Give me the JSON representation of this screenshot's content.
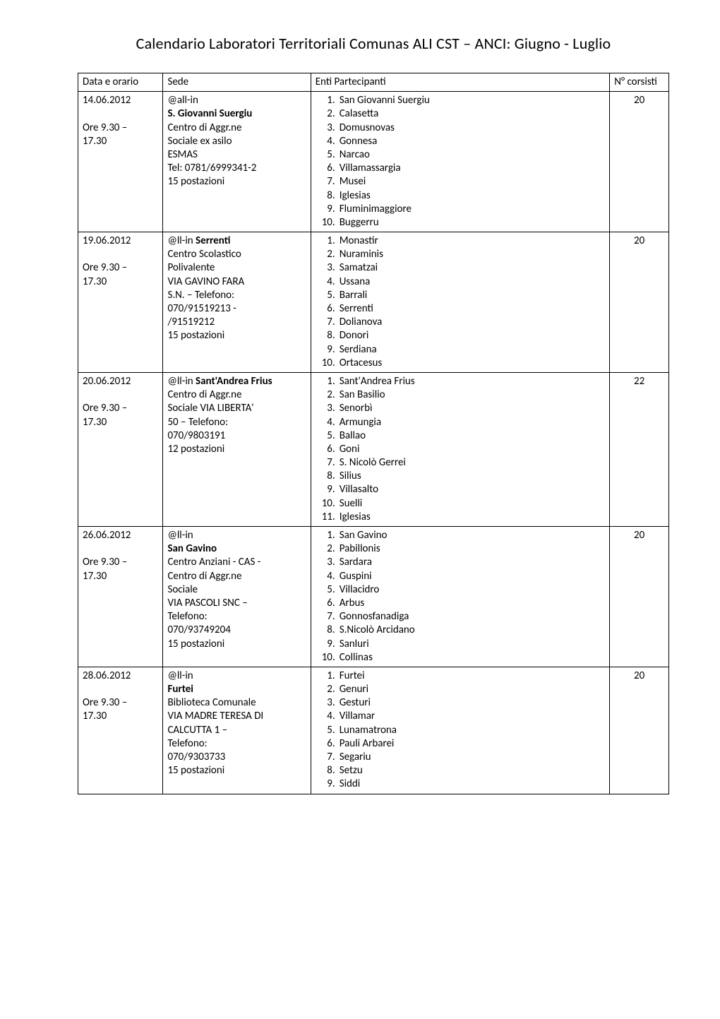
{
  "title": "Calendario Laboratori Territoriali Comunas ALI CST – ANCI: Giugno - Luglio",
  "columns": {
    "data": "Data e orario",
    "sede": "Sede",
    "enti": "Enti Partecipanti",
    "n": "N° corsisti"
  },
  "colWidths": {
    "data": 118,
    "sede": 205,
    "enti": 415,
    "n": 82
  },
  "fontSizePx": 15,
  "rows": [
    {
      "data": [
        "14.06.2012",
        "",
        "Ore 9.30 –",
        "17.30"
      ],
      "sede": [
        {
          "t": "@all-in"
        },
        {
          "t": "S. Giovanni Suergiu",
          "bold": true
        },
        {
          "t": "Centro di Aggr.ne"
        },
        {
          "t": "Sociale ex asilo"
        },
        {
          "t": "ESMAS"
        },
        {
          "t": "Tel: 0781/6999341-2"
        },
        {
          "t": "15          postazioni"
        }
      ],
      "enti": [
        "San Giovanni Suergiu",
        "Calasetta",
        "Domusnovas",
        "Gonnesa",
        "Narcao",
        "Villamassargia",
        "Musei",
        "Iglesias",
        "Fluminimaggiore",
        "Buggerru"
      ],
      "n": "20"
    },
    {
      "data": [
        "19.06.2012",
        "",
        "Ore 9.30 –",
        "17.30"
      ],
      "sede": [
        {
          "t": "@ll-in "
        },
        {
          "t": "Serrenti",
          "bold": true,
          "inline": true
        },
        {
          "t": "Centro Scolastico"
        },
        {
          "t": "Polivalente"
        },
        {
          "t": "VIA GAVINO FARA"
        },
        {
          "t": "S.N. – Telefono:"
        },
        {
          "t": "070/91519213 -"
        },
        {
          "t": "/91519212"
        },
        {
          "t": "15 postazioni"
        }
      ],
      "enti": [
        "Monastir",
        "Nuraminis",
        "Samatzai",
        "Ussana",
        "Barrali",
        "Serrenti",
        "Dolianova",
        "Donori",
        "Serdiana",
        "Ortacesus"
      ],
      "n": "20"
    },
    {
      "data": [
        "20.06.2012",
        "",
        "Ore 9.30 –",
        "17.30"
      ],
      "sede": [
        {
          "t": "@ll-in "
        },
        {
          "t": "Sant'Andrea Frius",
          "bold": true,
          "inline": true
        },
        {
          "t": "Centro di Aggr.ne"
        },
        {
          "t": "Sociale VIA LIBERTA'"
        },
        {
          "t": "50 – Telefono:"
        },
        {
          "t": "070/9803191"
        },
        {
          "t": "12 postazioni"
        }
      ],
      "enti": [
        "Sant'Andrea Frius",
        "San Basilio",
        "Senorbì",
        "Armungia",
        "Ballao",
        "Goni",
        "S. Nicolò Gerrei",
        "Silius",
        "Villasalto",
        "Suelli",
        "Iglesias"
      ],
      "n": "22"
    },
    {
      "data": [
        "26.06.2012",
        "",
        "Ore 9.30 –",
        "17.30"
      ],
      "sede": [
        {
          "t": "@ll-in"
        },
        {
          "t": "San Gavino",
          "bold": true
        },
        {
          "t": "Centro Anziani - CAS -"
        },
        {
          "t": "Centro di Aggr.ne"
        },
        {
          "t": "Sociale"
        },
        {
          "t": "VIA PASCOLI SNC –"
        },
        {
          "t": "Telefono:"
        },
        {
          "t": "070/93749204"
        },
        {
          "t": "15 postazioni"
        }
      ],
      "enti": [
        "San Gavino",
        "Pabillonis",
        "Sardara",
        "Guspini",
        "Villacidro",
        "Arbus",
        "Gonnosfanadiga",
        "S.Nicolò Arcidano",
        "Sanluri",
        "Collinas"
      ],
      "n": "20"
    },
    {
      "data": [
        "28.06.2012",
        "",
        "Ore 9.30 –",
        "17.30"
      ],
      "sede": [
        {
          "t": "@ll-in"
        },
        {
          "t": "Furtei",
          "bold": true
        },
        {
          "t": "Biblioteca Comunale"
        },
        {
          "t": "VIA MADRE TERESA DI"
        },
        {
          "t": "CALCUTTA 1 –"
        },
        {
          "t": "Telefono:"
        },
        {
          "t": "070/9303733"
        },
        {
          "t": "15 postazioni"
        }
      ],
      "enti": [
        "Furtei",
        "Genuri",
        "Gesturi",
        "Villamar",
        "Lunamatrona",
        "Pauli Arbarei",
        "Segariu",
        "Setzu",
        "Siddi"
      ],
      "n": "20"
    }
  ]
}
